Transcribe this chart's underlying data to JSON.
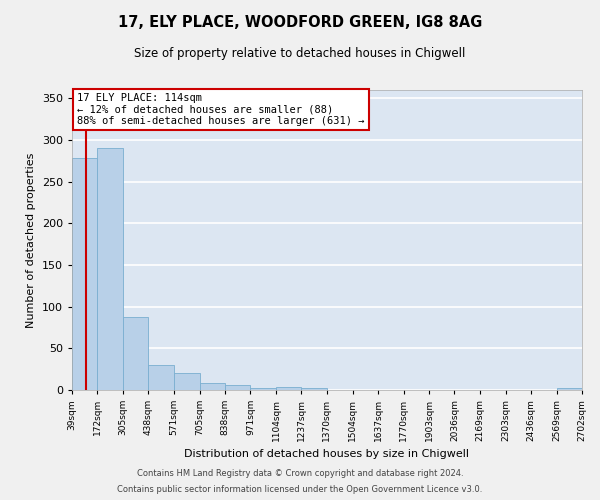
{
  "title": "17, ELY PLACE, WOODFORD GREEN, IG8 8AG",
  "subtitle": "Size of property relative to detached houses in Chigwell",
  "xlabel": "Distribution of detached houses by size in Chigwell",
  "ylabel": "Number of detached properties",
  "bar_color": "#b8d0e8",
  "bar_edge_color": "#7aaed0",
  "background_color": "#dce6f2",
  "plot_bg_color": "#dce6f2",
  "fig_bg_color": "#f0f0f0",
  "grid_color": "#ffffff",
  "annotation_text": "17 ELY PLACE: 114sqm\n← 12% of detached houses are smaller (88)\n88% of semi-detached houses are larger (631) →",
  "vline_x": 114,
  "vline_color": "#cc0000",
  "bin_edges": [
    39,
    172,
    305,
    438,
    571,
    705,
    838,
    971,
    1104,
    1237,
    1370,
    1504,
    1637,
    1770,
    1903,
    2036,
    2169,
    2303,
    2436,
    2569,
    2702
  ],
  "bar_heights": [
    278,
    290,
    88,
    30,
    20,
    8,
    6,
    3,
    4,
    3,
    0,
    0,
    0,
    0,
    0,
    0,
    0,
    0,
    0,
    2
  ],
  "tick_labels": [
    "39sqm",
    "172sqm",
    "305sqm",
    "438sqm",
    "571sqm",
    "705sqm",
    "838sqm",
    "971sqm",
    "1104sqm",
    "1237sqm",
    "1370sqm",
    "1504sqm",
    "1637sqm",
    "1770sqm",
    "1903sqm",
    "2036sqm",
    "2169sqm",
    "2303sqm",
    "2436sqm",
    "2569sqm",
    "2702sqm"
  ],
  "ylim": [
    0,
    360
  ],
  "yticks": [
    0,
    50,
    100,
    150,
    200,
    250,
    300,
    350
  ],
  "footer_line1": "Contains HM Land Registry data © Crown copyright and database right 2024.",
  "footer_line2": "Contains public sector information licensed under the Open Government Licence v3.0."
}
